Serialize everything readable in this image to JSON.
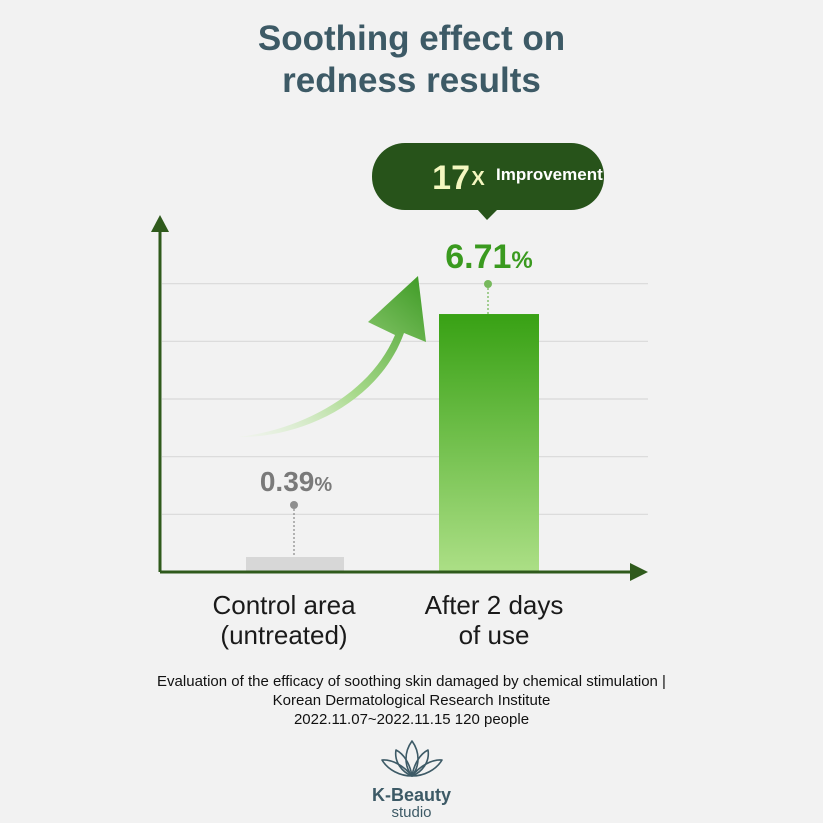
{
  "header": {
    "title_line1": "Soothing effect on",
    "title_line2": "redness results"
  },
  "chart_data": {
    "type": "bar",
    "categories": [
      "Control area (untreated)",
      "After 2 days of use"
    ],
    "category_lines": [
      [
        "Control area",
        "(untreated)"
      ],
      [
        "After 2 days",
        "of use"
      ]
    ],
    "values": [
      0.39,
      6.71
    ],
    "value_labels": [
      {
        "number": "0.39",
        "unit": "%"
      },
      {
        "number": "6.71",
        "unit": "%"
      }
    ],
    "ylim": [
      0,
      9
    ],
    "grid": true,
    "colors": {
      "control_bar": "#d7d7d7",
      "treated_bar_top": "#38a114",
      "treated_bar_bottom": "#acdf86",
      "axis": "#2f5a1c",
      "control_label": "#7a7a7a",
      "treated_label": "#3a9a1f",
      "callout_bg": "#27531a",
      "callout_number": "#f4f7c0"
    },
    "annotations": {
      "callout_number": "17",
      "callout_times": "X",
      "callout_text": "Improvement"
    }
  },
  "footer": {
    "caption_line1": "Evaluation of the efficacy of soothing skin damaged by chemical stimulation |",
    "caption_line2": "Korean Dermatological Research Institute",
    "caption_line3": "2022.11.07~2022.11.15 120 people"
  },
  "brand": {
    "name": "K-Beauty",
    "sub": "studio",
    "logo_icon": "lotus-icon"
  }
}
